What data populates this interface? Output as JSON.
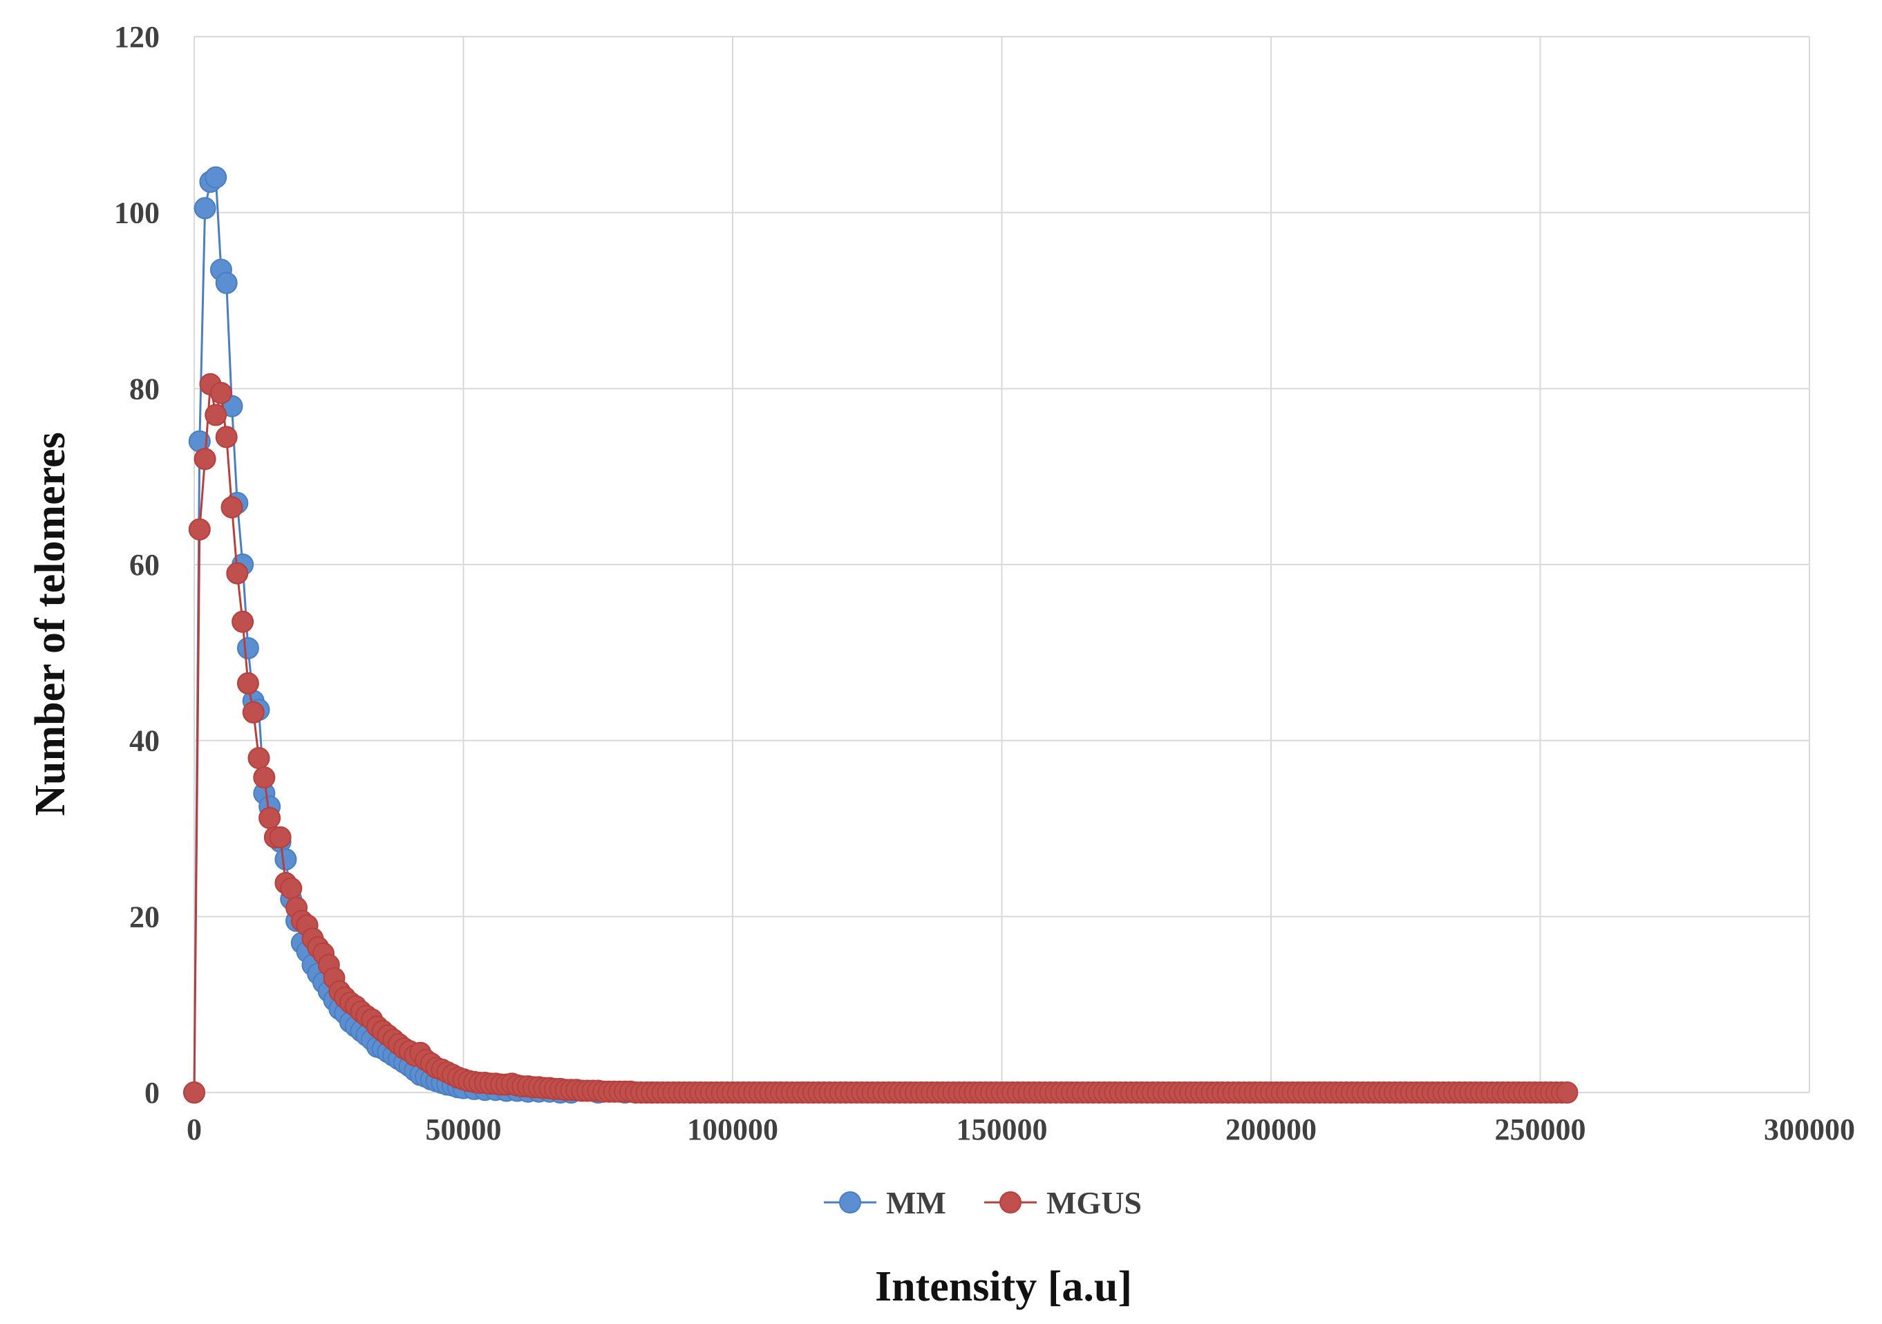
{
  "chart_data": {
    "type": "line",
    "title": "",
    "xlabel": "Intensity [a.u]",
    "ylabel": "Number of telomeres",
    "xlim": [
      0,
      300000
    ],
    "ylim": [
      0,
      120
    ],
    "x_ticks": [
      "0",
      "50000",
      "100000",
      "150000",
      "200000",
      "250000",
      "300000"
    ],
    "y_ticks": [
      "0",
      "20",
      "40",
      "60",
      "80",
      "100",
      "120"
    ],
    "grid": true,
    "legend_position": "bottom",
    "series": [
      {
        "name": "MM",
        "color": "#4a7ebf",
        "marker_fill": "#5b8fd1",
        "points": [
          [
            0,
            0
          ],
          [
            1000,
            74
          ],
          [
            2000,
            100.5
          ],
          [
            3000,
            103.5
          ],
          [
            4000,
            104
          ],
          [
            5000,
            93.5
          ],
          [
            6000,
            92
          ],
          [
            7000,
            78
          ],
          [
            8000,
            67
          ],
          [
            9000,
            60
          ],
          [
            10000,
            50.5
          ],
          [
            11000,
            44.5
          ],
          [
            12000,
            43.5
          ],
          [
            13000,
            34
          ],
          [
            14000,
            32.5
          ],
          [
            15000,
            29
          ],
          [
            16000,
            28.5
          ],
          [
            17000,
            26.5
          ],
          [
            18000,
            22
          ],
          [
            19000,
            19.5
          ],
          [
            20000,
            17
          ],
          [
            21000,
            16
          ],
          [
            22000,
            14.5
          ],
          [
            23000,
            13.5
          ],
          [
            24000,
            12.5
          ],
          [
            25000,
            11.5
          ],
          [
            26000,
            10.5
          ],
          [
            27000,
            9.5
          ],
          [
            28000,
            9
          ],
          [
            29000,
            8
          ],
          [
            30000,
            7.5
          ],
          [
            31000,
            7
          ],
          [
            32000,
            6.5
          ],
          [
            33000,
            6
          ],
          [
            34000,
            5.2
          ],
          [
            35000,
            5
          ],
          [
            36000,
            4.6
          ],
          [
            37000,
            4.2
          ],
          [
            38000,
            3.8
          ],
          [
            39000,
            3.4
          ],
          [
            40000,
            3
          ],
          [
            41000,
            2.5
          ],
          [
            42000,
            2
          ],
          [
            43000,
            1.8
          ],
          [
            44000,
            1.5
          ],
          [
            45000,
            1.3
          ],
          [
            46000,
            1.1
          ],
          [
            47000,
            0.9
          ],
          [
            48000,
            0.8
          ],
          [
            49000,
            0.6
          ],
          [
            50000,
            0.5
          ],
          [
            52000,
            0.4
          ],
          [
            54000,
            0.3
          ],
          [
            56000,
            0.3
          ],
          [
            58000,
            0.2
          ],
          [
            60000,
            0.2
          ],
          [
            62000,
            0.1
          ],
          [
            64000,
            0.1
          ],
          [
            66000,
            0.1
          ],
          [
            68000,
            0
          ],
          [
            70000,
            0
          ],
          [
            75000,
            0
          ],
          [
            80000,
            0
          ],
          [
            85000,
            0
          ]
        ]
      },
      {
        "name": "MGUS",
        "color": "#b5403d",
        "marker_fill": "#c0504d",
        "points": [
          [
            0,
            0
          ],
          [
            1000,
            64
          ],
          [
            2000,
            72
          ],
          [
            3000,
            80.5
          ],
          [
            4000,
            77
          ],
          [
            5000,
            79.5
          ],
          [
            6000,
            74.5
          ],
          [
            7000,
            66.5
          ],
          [
            8000,
            59
          ],
          [
            9000,
            53.5
          ],
          [
            10000,
            46.5
          ],
          [
            11000,
            43.2
          ],
          [
            12000,
            38
          ],
          [
            13000,
            35.8
          ],
          [
            14000,
            31.2
          ],
          [
            15000,
            29
          ],
          [
            16000,
            29
          ],
          [
            17000,
            23.8
          ],
          [
            18000,
            23.2
          ],
          [
            19000,
            21
          ],
          [
            20000,
            19.5
          ],
          [
            21000,
            19
          ],
          [
            22000,
            17.5
          ],
          [
            23000,
            16.5
          ],
          [
            24000,
            15.8
          ],
          [
            25000,
            14.5
          ],
          [
            26000,
            13
          ],
          [
            27000,
            11.5
          ],
          [
            28000,
            10.8
          ],
          [
            29000,
            10.2
          ],
          [
            30000,
            9.8
          ],
          [
            31000,
            9.2
          ],
          [
            32000,
            8.7
          ],
          [
            33000,
            8.3
          ],
          [
            34000,
            7.5
          ],
          [
            35000,
            7
          ],
          [
            36000,
            6.5
          ],
          [
            37000,
            6
          ],
          [
            38000,
            5.5
          ],
          [
            39000,
            5
          ],
          [
            40000,
            4.7
          ],
          [
            41000,
            4.2
          ],
          [
            42000,
            4.5
          ],
          [
            43000,
            3.7
          ],
          [
            44000,
            3.3
          ],
          [
            45000,
            2.8
          ],
          [
            46000,
            2.6
          ],
          [
            47000,
            2.3
          ],
          [
            48000,
            2
          ],
          [
            49000,
            1.7
          ],
          [
            50000,
            1.5
          ],
          [
            51000,
            1.3
          ],
          [
            52000,
            1.2
          ],
          [
            53000,
            1.1
          ],
          [
            54000,
            1.1
          ],
          [
            55000,
            1
          ],
          [
            56000,
            1
          ],
          [
            57000,
            0.9
          ],
          [
            58000,
            0.9
          ],
          [
            59000,
            1
          ],
          [
            60000,
            0.8
          ],
          [
            61000,
            0.7
          ],
          [
            62000,
            0.7
          ],
          [
            63000,
            0.6
          ],
          [
            64000,
            0.6
          ],
          [
            65000,
            0.5
          ],
          [
            66000,
            0.5
          ],
          [
            67000,
            0.4
          ],
          [
            68000,
            0.4
          ],
          [
            69000,
            0.3
          ],
          [
            70000,
            0.3
          ],
          [
            71000,
            0.3
          ],
          [
            72000,
            0.2
          ],
          [
            73000,
            0.2
          ],
          [
            74000,
            0.2
          ],
          [
            75000,
            0.2
          ],
          [
            76000,
            0.1
          ],
          [
            77000,
            0.1
          ],
          [
            78000,
            0.1
          ],
          [
            79000,
            0.1
          ],
          [
            80000,
            0.1
          ],
          [
            81000,
            0.1
          ],
          [
            82000,
            0
          ],
          [
            83000,
            0
          ],
          [
            84000,
            0
          ],
          [
            85000,
            0
          ],
          [
            86000,
            0
          ],
          [
            87000,
            0
          ],
          [
            88000,
            0
          ],
          [
            89000,
            0
          ],
          [
            90000,
            0
          ],
          [
            91000,
            0
          ],
          [
            92000,
            0
          ],
          [
            93000,
            0
          ],
          [
            94000,
            0
          ],
          [
            95000,
            0
          ],
          [
            96000,
            0
          ],
          [
            97000,
            0
          ],
          [
            98000,
            0
          ],
          [
            99000,
            0
          ],
          [
            100000,
            0
          ],
          [
            101000,
            0
          ],
          [
            102000,
            0
          ],
          [
            103000,
            0
          ],
          [
            104000,
            0
          ],
          [
            105000,
            0
          ],
          [
            106000,
            0
          ],
          [
            107000,
            0
          ],
          [
            108000,
            0
          ],
          [
            109000,
            0
          ],
          [
            110000,
            0
          ],
          [
            111000,
            0
          ],
          [
            112000,
            0
          ],
          [
            113000,
            0
          ],
          [
            114000,
            0
          ],
          [
            115000,
            0
          ],
          [
            116000,
            0
          ],
          [
            117000,
            0
          ],
          [
            118000,
            0
          ],
          [
            119000,
            0
          ],
          [
            120000,
            0
          ],
          [
            121000,
            0
          ],
          [
            122000,
            0
          ],
          [
            123000,
            0
          ],
          [
            124000,
            0
          ],
          [
            125000,
            0
          ],
          [
            126000,
            0
          ],
          [
            127000,
            0
          ],
          [
            128000,
            0
          ],
          [
            129000,
            0
          ],
          [
            130000,
            0
          ],
          [
            131000,
            0
          ],
          [
            132000,
            0
          ],
          [
            133000,
            0
          ],
          [
            134000,
            0
          ],
          [
            135000,
            0
          ],
          [
            136000,
            0
          ],
          [
            137000,
            0
          ],
          [
            138000,
            0
          ],
          [
            139000,
            0
          ],
          [
            140000,
            0
          ],
          [
            141000,
            0
          ],
          [
            142000,
            0
          ],
          [
            143000,
            0
          ],
          [
            144000,
            0
          ],
          [
            145000,
            0
          ],
          [
            146000,
            0
          ],
          [
            147000,
            0
          ],
          [
            148000,
            0
          ],
          [
            149000,
            0
          ],
          [
            150000,
            0
          ],
          [
            151000,
            0
          ],
          [
            152000,
            0
          ],
          [
            153000,
            0
          ],
          [
            154000,
            0
          ],
          [
            155000,
            0
          ],
          [
            156000,
            0
          ],
          [
            157000,
            0
          ],
          [
            158000,
            0
          ],
          [
            159000,
            0
          ],
          [
            160000,
            0
          ],
          [
            161000,
            0
          ],
          [
            162000,
            0
          ],
          [
            163000,
            0
          ],
          [
            164000,
            0
          ],
          [
            165000,
            0
          ],
          [
            166000,
            0
          ],
          [
            167000,
            0
          ],
          [
            168000,
            0
          ],
          [
            169000,
            0
          ],
          [
            170000,
            0
          ],
          [
            171000,
            0
          ],
          [
            172000,
            0
          ],
          [
            173000,
            0
          ],
          [
            174000,
            0
          ],
          [
            175000,
            0
          ],
          [
            176000,
            0
          ],
          [
            177000,
            0
          ],
          [
            178000,
            0
          ],
          [
            179000,
            0
          ],
          [
            180000,
            0
          ],
          [
            181000,
            0
          ],
          [
            182000,
            0
          ],
          [
            183000,
            0
          ],
          [
            184000,
            0
          ],
          [
            185000,
            0
          ],
          [
            186000,
            0
          ],
          [
            187000,
            0
          ],
          [
            188000,
            0
          ],
          [
            189000,
            0
          ],
          [
            190000,
            0
          ],
          [
            191000,
            0
          ],
          [
            192000,
            0
          ],
          [
            193000,
            0
          ],
          [
            194000,
            0
          ],
          [
            195000,
            0
          ],
          [
            196000,
            0
          ],
          [
            197000,
            0
          ],
          [
            198000,
            0
          ],
          [
            199000,
            0
          ],
          [
            200000,
            0
          ],
          [
            201000,
            0
          ],
          [
            202000,
            0
          ],
          [
            203000,
            0
          ],
          [
            204000,
            0
          ],
          [
            205000,
            0
          ],
          [
            206000,
            0
          ],
          [
            207000,
            0
          ],
          [
            208000,
            0
          ],
          [
            209000,
            0
          ],
          [
            210000,
            0
          ],
          [
            211000,
            0
          ],
          [
            212000,
            0
          ],
          [
            213000,
            0
          ],
          [
            214000,
            0
          ],
          [
            215000,
            0
          ],
          [
            216000,
            0
          ],
          [
            217000,
            0
          ],
          [
            218000,
            0
          ],
          [
            219000,
            0
          ],
          [
            220000,
            0
          ],
          [
            221000,
            0
          ],
          [
            222000,
            0
          ],
          [
            223000,
            0
          ],
          [
            224000,
            0
          ],
          [
            225000,
            0
          ],
          [
            226000,
            0
          ],
          [
            227000,
            0
          ],
          [
            228000,
            0
          ],
          [
            229000,
            0
          ],
          [
            230000,
            0
          ],
          [
            231000,
            0
          ],
          [
            232000,
            0
          ],
          [
            233000,
            0
          ],
          [
            234000,
            0
          ],
          [
            235000,
            0
          ],
          [
            236000,
            0
          ],
          [
            237000,
            0
          ],
          [
            238000,
            0
          ],
          [
            239000,
            0
          ],
          [
            240000,
            0
          ],
          [
            241000,
            0
          ],
          [
            242000,
            0
          ],
          [
            243000,
            0
          ],
          [
            244000,
            0
          ],
          [
            245000,
            0
          ],
          [
            246000,
            0
          ],
          [
            247000,
            0
          ],
          [
            248000,
            0
          ],
          [
            249000,
            0
          ],
          [
            250000,
            0
          ],
          [
            251000,
            0
          ],
          [
            252000,
            0
          ],
          [
            253000,
            0
          ],
          [
            254000,
            0
          ],
          [
            255000,
            0
          ]
        ]
      }
    ]
  }
}
